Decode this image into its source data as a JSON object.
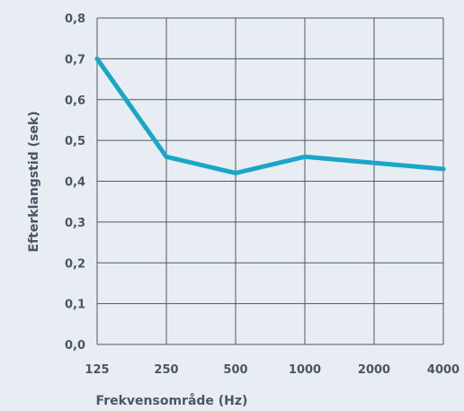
{
  "chart_data": {
    "type": "line",
    "title": "",
    "xlabel": "Frekvensområde (Hz)",
    "ylabel": "Efterklangstid (sek)",
    "categories": [
      "125",
      "250",
      "500",
      "1000",
      "2000",
      "4000"
    ],
    "series": [
      {
        "values": [
          0.7,
          0.46,
          0.42,
          0.46,
          0.445,
          0.43
        ]
      }
    ],
    "ylim": [
      0,
      0.8
    ],
    "yticks": [
      "0,0",
      "0,1",
      "0,2",
      "0,3",
      "0,4",
      "0,5",
      "0,6",
      "0,7",
      "0,8"
    ],
    "grid": true,
    "colors": {
      "line": "#19a6c9",
      "grid": "#4d5966",
      "background": "#e8edf3",
      "text": "#4a5663"
    }
  }
}
